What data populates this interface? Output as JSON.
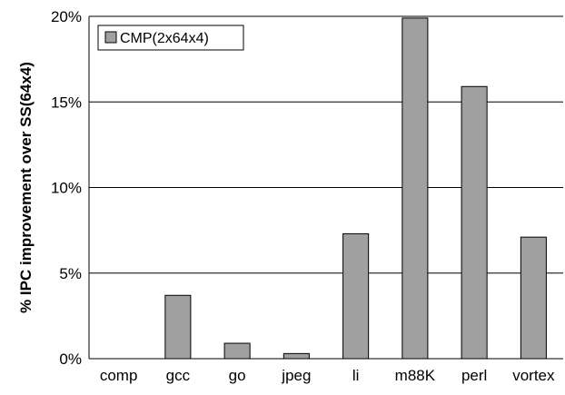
{
  "chart_data": {
    "type": "bar",
    "categories": [
      "comp",
      "gcc",
      "go",
      "jpeg",
      "li",
      "m88K",
      "perl",
      "vortex"
    ],
    "series": [
      {
        "name": "CMP(2x64x4)",
        "values": [
          0,
          3.7,
          0.9,
          0.3,
          7.3,
          19.9,
          15.9,
          7.1
        ],
        "color": "#a0a0a0"
      }
    ],
    "ylabel": "% IPC improvement over SS(64x4)",
    "xlabel": "",
    "ylim": [
      0,
      20
    ],
    "yticks": [
      0,
      5,
      10,
      15,
      20
    ],
    "ytick_labels": [
      "0%",
      "5%",
      "10%",
      "15%",
      "20%"
    ],
    "grid": "horizontal",
    "legend_position": "top-left"
  }
}
